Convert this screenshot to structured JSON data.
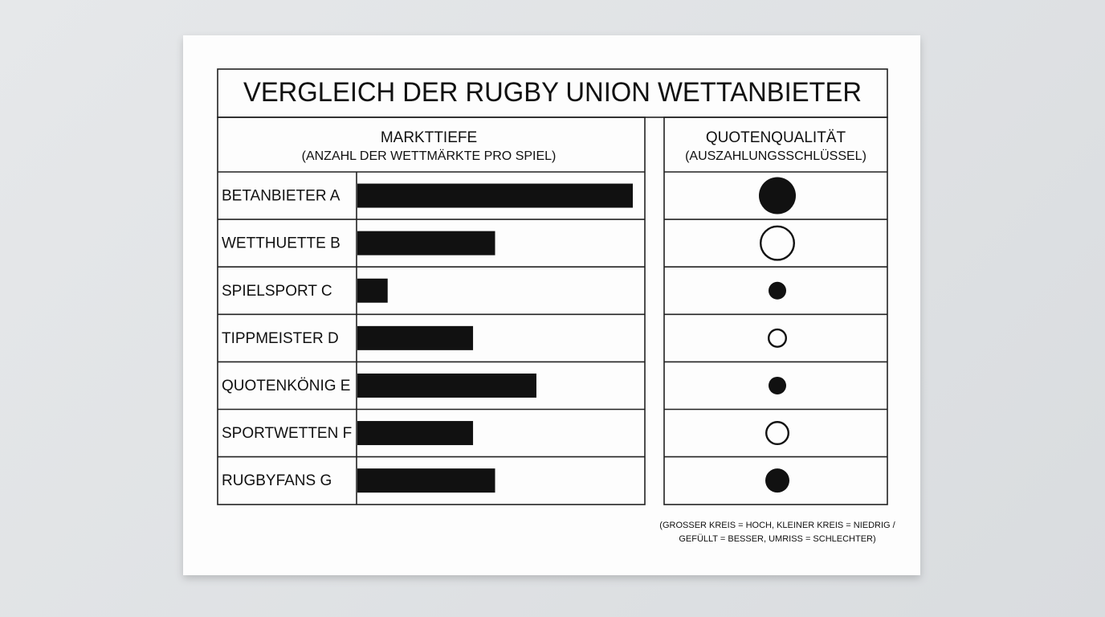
{
  "chart_data": {
    "type": "bar",
    "title": "VERGLEICH DER RUGBY UNION WETTANBIETER",
    "value_header": "MARKTTIEFE",
    "value_subheader": "(ANZAHL DER WETTMÄRKTE PRO SPIEL)",
    "quality_header": "QUOTENQUALITÄT",
    "quality_subheader": "(AUSZAHLUNGSSCHLÜSSEL)",
    "categories": [
      "BETANBIETER A",
      "WETTHUETTE B",
      "SPIELSPORT C",
      "TIPPMEISTER D",
      "QUOTENKÖNIG E",
      "SPORTWETTEN F",
      "RUGBYFANS G"
    ],
    "values": [
      100,
      50,
      11,
      42,
      65,
      42,
      50
    ],
    "xlim": [
      0,
      100
    ],
    "color": "#111111",
    "quality_sizes": [
      23,
      22,
      11,
      12,
      11,
      15,
      15
    ],
    "quality_filled": [
      true,
      false,
      true,
      false,
      true,
      false,
      true
    ],
    "footnote": [
      "(GROSSER KREIS = HOCH, KLEINER KREIS = NIEDRIG /",
      "GEFÜLLT = BESSER, UMRISS = SCHLECHTER)"
    ]
  }
}
